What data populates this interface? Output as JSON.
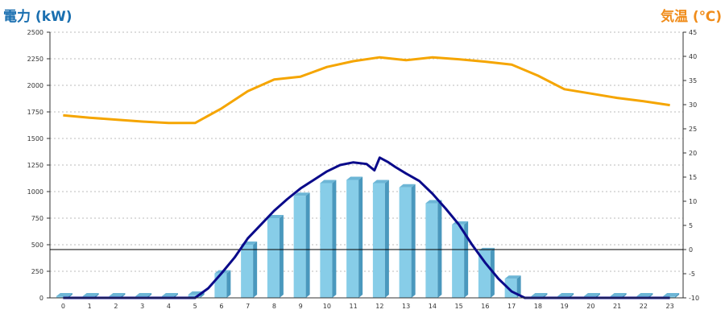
{
  "chart_data": {
    "type": "bar+line",
    "titles": {
      "left": "電力 (kW)",
      "right": "気温 (℃)"
    },
    "colors": {
      "left_title": "#1a6fb0",
      "right_title": "#f08c1a",
      "bar_front": "#87cde8",
      "bar_side": "#4a98bd",
      "bar_top": "#6db6d6",
      "power_line": "#0a0a8a",
      "temp_line": "#f5a500",
      "grid": "#bbbbbb"
    },
    "x": [
      "0",
      "1",
      "2",
      "3",
      "4",
      "5",
      "6",
      "7",
      "8",
      "9",
      "10",
      "11",
      "12",
      "13",
      "14",
      "15",
      "16",
      "17",
      "18",
      "19",
      "20",
      "21",
      "22",
      "23"
    ],
    "y_left": {
      "min": 0,
      "max": 2500,
      "ticks": [
        "0",
        "250",
        "500",
        "750",
        "1000",
        "1250",
        "1500",
        "1750",
        "2000",
        "2250",
        "2500"
      ]
    },
    "y_right": {
      "min": -10,
      "max": 45,
      "ticks": [
        "-10",
        "-5",
        "0",
        "5",
        "10",
        "15",
        "20",
        "25",
        "30",
        "35",
        "40",
        "45"
      ]
    },
    "grid": true,
    "series": [
      {
        "kind": "bar",
        "axis": "left",
        "values": [
          0,
          0,
          0,
          0,
          0,
          30,
          230,
          500,
          750,
          960,
          1080,
          1110,
          1080,
          1040,
          890,
          690,
          440,
          180,
          0,
          0,
          0,
          0,
          0,
          0
        ]
      },
      {
        "kind": "line",
        "axis": "left",
        "points": [
          [
            0,
            0
          ],
          [
            1,
            0
          ],
          [
            2,
            0
          ],
          [
            3,
            0
          ],
          [
            4,
            0
          ],
          [
            5,
            0
          ],
          [
            5.5,
            90
          ],
          [
            6,
            230
          ],
          [
            6.5,
            380
          ],
          [
            7,
            560
          ],
          [
            7.5,
            690
          ],
          [
            8,
            820
          ],
          [
            8.5,
            930
          ],
          [
            9,
            1030
          ],
          [
            9.5,
            1110
          ],
          [
            10,
            1190
          ],
          [
            10.5,
            1250
          ],
          [
            11,
            1275
          ],
          [
            11.5,
            1260
          ],
          [
            11.8,
            1200
          ],
          [
            12,
            1320
          ],
          [
            12.3,
            1280
          ],
          [
            12.6,
            1230
          ],
          [
            13,
            1170
          ],
          [
            13.5,
            1100
          ],
          [
            14,
            980
          ],
          [
            14.5,
            840
          ],
          [
            15,
            690
          ],
          [
            15.5,
            500
          ],
          [
            16,
            330
          ],
          [
            16.5,
            180
          ],
          [
            17,
            60
          ],
          [
            17.5,
            0
          ],
          [
            18,
            0
          ],
          [
            19,
            0
          ],
          [
            20,
            0
          ],
          [
            21,
            0
          ],
          [
            22,
            0
          ],
          [
            23,
            0
          ]
        ]
      },
      {
        "kind": "line",
        "axis": "right",
        "points": [
          [
            0,
            27.8
          ],
          [
            1,
            27.3
          ],
          [
            2,
            26.9
          ],
          [
            3,
            26.5
          ],
          [
            4,
            26.2
          ],
          [
            5,
            26.2
          ],
          [
            6,
            29.2
          ],
          [
            7,
            32.8
          ],
          [
            8,
            35.2
          ],
          [
            9,
            35.8
          ],
          [
            10,
            37.8
          ],
          [
            11,
            39
          ],
          [
            12,
            39.8
          ],
          [
            13,
            39.2
          ],
          [
            14,
            39.8
          ],
          [
            15,
            39.4
          ],
          [
            16,
            38.9
          ],
          [
            17,
            38.3
          ],
          [
            18,
            36
          ],
          [
            19,
            33.2
          ],
          [
            20,
            32.3
          ],
          [
            21,
            31.4
          ],
          [
            22,
            30.7
          ],
          [
            23,
            29.9
          ]
        ]
      }
    ],
    "reference_line": {
      "axis": "right",
      "value": 0
    }
  }
}
